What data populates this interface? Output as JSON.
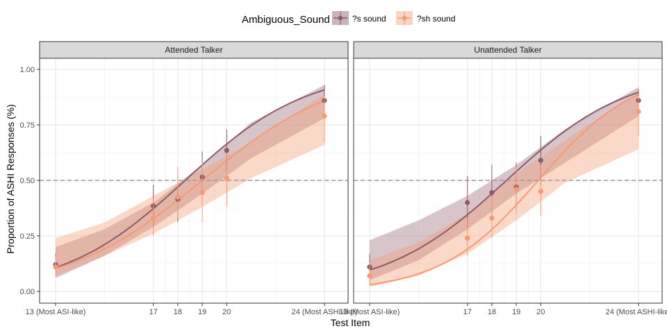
{
  "chart_data": {
    "type": "line",
    "xlabel": "Test Item",
    "ylabel": "Proportion of ASHI Responses (%)",
    "xlim": [
      13,
      24
    ],
    "ylim": [
      0,
      1
    ],
    "grid": true,
    "legend": {
      "title": "Ambiguous_Sound",
      "placement": "top",
      "entries": [
        "?s sound",
        "?sh sound"
      ]
    },
    "reference_line": {
      "y": 0.5,
      "style": "dashed"
    },
    "x_ticks": [
      {
        "value": 13,
        "label": "13 (Most ASI-like)"
      },
      {
        "value": 17,
        "label": "17"
      },
      {
        "value": 18,
        "label": "18"
      },
      {
        "value": 19,
        "label": "19"
      },
      {
        "value": 20,
        "label": "20"
      },
      {
        "value": 24,
        "label": "24 (Most ASHI-like)"
      }
    ],
    "y_ticks": [
      {
        "value": 0,
        "label": "0.00"
      },
      {
        "value": 0.25,
        "label": "0.25"
      },
      {
        "value": 0.5,
        "label": "0.50"
      },
      {
        "value": 0.75,
        "label": "0.75"
      },
      {
        "value": 1,
        "label": "1.00"
      }
    ],
    "colors": {
      "s_sound": "#8C5A66",
      "sh_sound": "#F59A72"
    },
    "panels": [
      {
        "title": "Attended Talker",
        "series": [
          {
            "name": "?s sound",
            "points": [
              {
                "x": 13,
                "y": 0.12,
                "lo": 0.07,
                "hi": 0.17
              },
              {
                "x": 17,
                "y": 0.385,
                "lo": 0.29,
                "hi": 0.48
              },
              {
                "x": 18,
                "y": 0.415,
                "lo": 0.31,
                "hi": 0.52
              },
              {
                "x": 19,
                "y": 0.515,
                "lo": 0.41,
                "hi": 0.63
              },
              {
                "x": 20,
                "y": 0.635,
                "lo": 0.54,
                "hi": 0.73
              },
              {
                "x": 24,
                "y": 0.86,
                "lo": 0.79,
                "hi": 0.93
              }
            ],
            "curve": {
              "midpoint": 18.3,
              "slope": 0.4
            },
            "band": [
              {
                "x": 13,
                "lo": 0.06,
                "hi": 0.2
              },
              {
                "x": 15,
                "lo": 0.16,
                "hi": 0.28
              },
              {
                "x": 17,
                "lo": 0.29,
                "hi": 0.4
              },
              {
                "x": 19,
                "lo": 0.44,
                "hi": 0.57
              },
              {
                "x": 21,
                "lo": 0.6,
                "hi": 0.76
              },
              {
                "x": 24,
                "lo": 0.78,
                "hi": 0.93
              }
            ]
          },
          {
            "name": "?sh sound",
            "points": [
              {
                "x": 13,
                "y": 0.11,
                "lo": 0.07,
                "hi": 0.16
              },
              {
                "x": 17,
                "y": 0.33,
                "lo": 0.25,
                "hi": 0.42
              },
              {
                "x": 18,
                "y": 0.425,
                "lo": 0.33,
                "hi": 0.56
              },
              {
                "x": 19,
                "y": 0.445,
                "lo": 0.31,
                "hi": 0.58
              },
              {
                "x": 20,
                "y": 0.51,
                "lo": 0.38,
                "hi": 0.62
              },
              {
                "x": 24,
                "y": 0.79,
                "lo": 0.67,
                "hi": 0.88
              }
            ],
            "curve": {
              "midpoint": 19.0,
              "slope": 0.36
            },
            "band": [
              {
                "x": 13,
                "lo": 0.07,
                "hi": 0.24
              },
              {
                "x": 15,
                "lo": 0.16,
                "hi": 0.31
              },
              {
                "x": 17,
                "lo": 0.26,
                "hi": 0.43
              },
              {
                "x": 19,
                "lo": 0.38,
                "hi": 0.55
              },
              {
                "x": 21,
                "lo": 0.51,
                "hi": 0.67
              },
              {
                "x": 24,
                "lo": 0.66,
                "hi": 0.89
              }
            ]
          }
        ]
      },
      {
        "title": "Unattended Talker",
        "series": [
          {
            "name": "?s sound",
            "points": [
              {
                "x": 13,
                "y": 0.11,
                "lo": 0.06,
                "hi": 0.17
              },
              {
                "x": 17,
                "y": 0.4,
                "lo": 0.28,
                "hi": 0.52
              },
              {
                "x": 18,
                "y": 0.445,
                "lo": 0.33,
                "hi": 0.57
              },
              {
                "x": 19,
                "y": 0.47,
                "lo": 0.37,
                "hi": 0.58
              },
              {
                "x": 20,
                "y": 0.59,
                "lo": 0.48,
                "hi": 0.7
              },
              {
                "x": 24,
                "y": 0.86,
                "lo": 0.79,
                "hi": 0.91
              }
            ],
            "curve": {
              "midpoint": 18.6,
              "slope": 0.4
            },
            "band": [
              {
                "x": 13,
                "lo": 0.05,
                "hi": 0.23
              },
              {
                "x": 15,
                "lo": 0.14,
                "hi": 0.32
              },
              {
                "x": 17,
                "lo": 0.28,
                "hi": 0.43
              },
              {
                "x": 19,
                "lo": 0.44,
                "hi": 0.57
              },
              {
                "x": 21,
                "lo": 0.58,
                "hi": 0.73
              },
              {
                "x": 24,
                "lo": 0.79,
                "hi": 0.92
              }
            ]
          },
          {
            "name": "?sh sound",
            "points": [
              {
                "x": 13,
                "y": 0.07,
                "lo": 0.03,
                "hi": 0.13
              },
              {
                "x": 17,
                "y": 0.24,
                "lo": 0.16,
                "hi": 0.33
              },
              {
                "x": 18,
                "y": 0.33,
                "lo": 0.24,
                "hi": 0.43
              },
              {
                "x": 19,
                "y": 0.46,
                "lo": 0.35,
                "hi": 0.56
              },
              {
                "x": 20,
                "y": 0.45,
                "lo": 0.34,
                "hi": 0.57
              },
              {
                "x": 24,
                "y": 0.81,
                "lo": 0.7,
                "hi": 0.88
              }
            ],
            "curve": {
              "midpoint": 19.9,
              "slope": 0.5
            },
            "band": [
              {
                "x": 13,
                "lo": 0.02,
                "hi": 0.14
              },
              {
                "x": 15,
                "lo": 0.07,
                "hi": 0.22
              },
              {
                "x": 17,
                "lo": 0.17,
                "hi": 0.35
              },
              {
                "x": 19,
                "lo": 0.32,
                "hi": 0.53
              },
              {
                "x": 21,
                "lo": 0.49,
                "hi": 0.68
              },
              {
                "x": 24,
                "lo": 0.64,
                "hi": 0.9
              }
            ]
          }
        ]
      }
    ]
  }
}
